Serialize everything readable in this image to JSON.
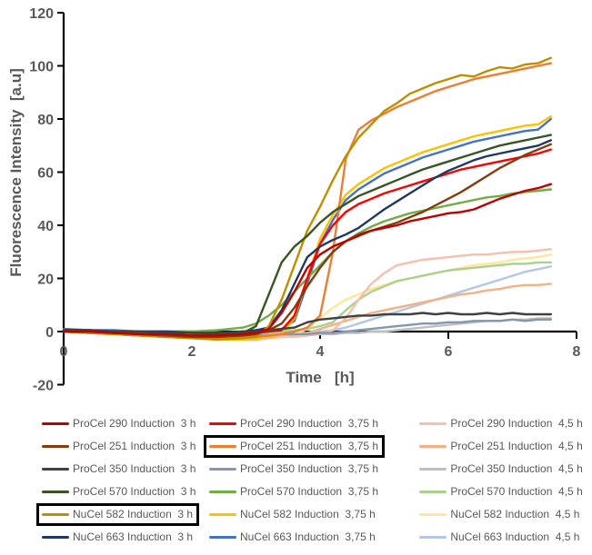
{
  "chart_data": {
    "type": "line",
    "title": "",
    "xlabel": "Time   [h]",
    "ylabel": "Fluorescence Intensity  [a.u]",
    "xlim": [
      0,
      8
    ],
    "ylim": [
      -20,
      120
    ],
    "x_ticks": [
      0,
      2,
      4,
      6,
      8
    ],
    "y_ticks": [
      120,
      100,
      80,
      60,
      40,
      20,
      0,
      -20
    ],
    "grid": false,
    "legend": {
      "position": "bottom",
      "columns": 3,
      "highlighted_entries": [
        "NuCel 582 Induction  3 h",
        "ProCel 251 Induction  3,75 h"
      ]
    },
    "axis_color": "#000000",
    "text_color": "#595959",
    "x": [
      0,
      0.4,
      0.8,
      1.2,
      1.6,
      2,
      2.4,
      2.8,
      3,
      3.2,
      3.4,
      3.6,
      3.8,
      4,
      4.2,
      4.4,
      4.6,
      4.8,
      5,
      5.2,
      5.4,
      5.6,
      5.8,
      6,
      6.2,
      6.4,
      6.6,
      6.8,
      7,
      7.2,
      7.4,
      7.6
    ],
    "series": [
      {
        "name": "ProCel 290 Induction  3 h",
        "color": "#C00000",
        "highlighted": false,
        "values": [
          0,
          0,
          -0.5,
          -1,
          -1,
          -1.5,
          -1.5,
          -1,
          -0.5,
          1,
          7,
          15,
          24,
          29,
          32,
          34,
          36,
          38,
          39,
          40,
          41.5,
          42.5,
          43.5,
          44.5,
          45,
          46,
          48,
          50,
          51.5,
          53,
          54,
          55.5
        ]
      },
      {
        "name": "ProCel 251 Induction  3 h",
        "color": "#843C0C",
        "highlighted": false,
        "values": [
          0,
          0,
          -0.5,
          -1,
          -1.5,
          -2,
          -2,
          -1.5,
          -1,
          0.5,
          3,
          9,
          17,
          24,
          30,
          34,
          36.5,
          38,
          39.5,
          41,
          43,
          45,
          47.5,
          50,
          52.5,
          55.5,
          58.5,
          61.5,
          64,
          66.5,
          68.5,
          70.5
        ]
      },
      {
        "name": "ProCel 350 Induction  3 h",
        "color": "#404040",
        "highlighted": false,
        "values": [
          0.5,
          0.5,
          0,
          0,
          -0.5,
          -0.5,
          -0.5,
          0,
          0,
          0.5,
          1,
          1.5,
          3.5,
          4.5,
          5,
          5.5,
          6,
          6,
          6.5,
          6.5,
          6.5,
          7,
          6.5,
          7,
          6.5,
          6.5,
          7,
          6.5,
          7,
          6.5,
          6.5,
          6.5
        ]
      },
      {
        "name": "ProCel 570 Induction  3 h",
        "color": "#375623",
        "highlighted": false,
        "values": [
          0,
          0,
          -0.5,
          -1,
          -1,
          -1.5,
          -1,
          -0.5,
          2,
          14,
          26,
          32,
          36,
          41,
          45,
          48,
          51,
          53,
          55,
          57,
          59,
          61,
          62.5,
          64,
          65.5,
          67,
          68.5,
          70,
          71,
          72,
          73,
          74
        ]
      },
      {
        "name": "NuCel 582 Induction  3 h",
        "color": "#BF8F00",
        "highlighted": true,
        "values": [
          0,
          -0.5,
          -1,
          -1.5,
          -2,
          -2.5,
          -3,
          -2.5,
          -2,
          2,
          12,
          25,
          38,
          47,
          57,
          66,
          73,
          78,
          83,
          86,
          89.5,
          91.5,
          93.5,
          95,
          96.5,
          96,
          98,
          99.5,
          99,
          100.5,
          101,
          103
        ]
      },
      {
        "name": "NuCel 663 Induction  3 h",
        "color": "#203864",
        "highlighted": false,
        "values": [
          0.5,
          0.5,
          0,
          0,
          0,
          -0.5,
          -0.5,
          0,
          0.5,
          1.5,
          8,
          18,
          28,
          32,
          34.5,
          36.5,
          39,
          42.5,
          46,
          49,
          52,
          55,
          58,
          60.5,
          62.5,
          64.5,
          66,
          67,
          68,
          69,
          70,
          72
        ]
      },
      {
        "name": "ProCel 290 Induction  3,75 h",
        "color": "#FF0000",
        "highlighted": false,
        "values": [
          0,
          0,
          -0.5,
          -1,
          -1,
          -1.5,
          -1.5,
          -1,
          -0.5,
          0,
          0.5,
          6,
          20,
          33,
          40,
          45,
          48,
          50,
          52,
          53.5,
          55,
          56.5,
          58,
          59.5,
          61,
          62,
          63,
          64,
          65,
          66,
          67,
          68.5
        ]
      },
      {
        "name": "ProCel 251 Induction  3,75 h",
        "color": "#ED7D31",
        "highlighted": true,
        "values": [
          0,
          -0.5,
          -1,
          -1.5,
          -2,
          -2.5,
          -2.5,
          -2,
          -2,
          -1.5,
          -1,
          0,
          1.5,
          6,
          30,
          65,
          76,
          79.5,
          82,
          84.5,
          86.5,
          88.5,
          90.5,
          92,
          93.5,
          95,
          96,
          97,
          98,
          99,
          100,
          101
        ]
      },
      {
        "name": "ProCel 350 Induction  3,75 h",
        "color": "#8497B0",
        "highlighted": false,
        "values": [
          0,
          0,
          -0.5,
          -1,
          -1,
          -1.5,
          -1.5,
          -1.5,
          -1.5,
          -1.5,
          -1,
          -1,
          -1,
          -0.5,
          -0.5,
          0,
          0.5,
          1,
          1.5,
          2,
          2.5,
          3,
          3,
          3.5,
          3.5,
          4,
          4,
          4,
          4.5,
          4,
          4.5,
          4.5
        ]
      },
      {
        "name": "ProCel 570 Induction  3,75 h",
        "color": "#70AD47",
        "highlighted": false,
        "values": [
          0,
          0,
          -0.5,
          -0.5,
          0,
          0,
          0.5,
          1.5,
          3,
          6,
          10,
          15,
          20,
          25,
          30,
          34,
          37,
          39.5,
          41.5,
          43,
          44.5,
          45.5,
          46.5,
          47.5,
          48.5,
          49.5,
          50.5,
          51,
          52,
          52.5,
          53,
          53.5
        ]
      },
      {
        "name": "NuCel 582 Induction  3,75 h",
        "color": "#FFC000",
        "highlighted": false,
        "values": [
          0,
          -0.5,
          -1,
          -1.5,
          -2,
          -2.5,
          -3,
          -3,
          -2.5,
          -2,
          -1,
          5,
          20,
          35,
          44,
          51.5,
          55.5,
          58.5,
          61.5,
          63.5,
          65.5,
          67.5,
          69,
          70.5,
          72,
          73.5,
          74.5,
          75.5,
          76.5,
          77.5,
          78,
          81
        ]
      },
      {
        "name": "NuCel 663 Induction  3,75 h",
        "color": "#4472C4",
        "highlighted": false,
        "values": [
          1,
          0.5,
          0.5,
          0,
          0,
          0,
          -0.5,
          -0.5,
          -0.5,
          0,
          1,
          4,
          18,
          33,
          42,
          49.5,
          53.5,
          56.5,
          59.5,
          61.5,
          63.5,
          65.5,
          67,
          68.5,
          70,
          71.5,
          72.5,
          73.5,
          74.5,
          75.5,
          76,
          80
        ]
      },
      {
        "name": "ProCel 290 Induction  4,5 h",
        "color": "#F7BFAC",
        "highlighted": false,
        "values": [
          0,
          -0.5,
          -1,
          -1.5,
          -2,
          -2.5,
          -2.5,
          -2.5,
          -2.5,
          -2.5,
          -2,
          -2,
          -1.5,
          -1,
          0.5,
          5,
          12,
          18,
          22,
          25,
          26,
          27,
          27.5,
          28,
          28.5,
          29,
          29,
          29.5,
          30,
          30,
          30.5,
          31
        ]
      },
      {
        "name": "ProCel 251 Induction  4,5 h",
        "color": "#F4B183",
        "highlighted": false,
        "values": [
          0,
          -0.5,
          -1,
          -1.5,
          -2,
          -2.5,
          -3,
          -3,
          -3,
          -2.5,
          -2,
          -1.5,
          -0.5,
          1,
          2.5,
          4,
          5.5,
          7,
          8,
          9,
          10,
          11,
          12,
          13,
          14,
          14.5,
          15.5,
          16,
          17,
          17.5,
          17.5,
          18
        ]
      },
      {
        "name": "ProCel 350 Induction  4,5 h",
        "color": "#BFBFBF",
        "highlighted": false,
        "values": [
          0,
          0,
          -0.5,
          -1,
          -1,
          -1.5,
          -1.5,
          -1.5,
          -1.5,
          -1.5,
          -1.5,
          -1,
          -1,
          -1,
          -1,
          -0.5,
          -0.5,
          0,
          0,
          0.5,
          1,
          1.5,
          2,
          2.5,
          3,
          3.5,
          4,
          4,
          4.5,
          4.5,
          5,
          5
        ]
      },
      {
        "name": "ProCel 570 Induction  4,5 h",
        "color": "#A9D18E",
        "highlighted": false,
        "values": [
          0,
          0,
          -0.5,
          -1,
          -1,
          -1.5,
          -1.5,
          -1,
          -1,
          -0.5,
          0,
          0.5,
          1,
          2,
          3.5,
          8,
          12,
          15,
          17,
          19,
          20,
          21,
          22,
          23,
          23.5,
          24,
          24.5,
          25,
          25.5,
          25.5,
          26,
          26
        ]
      },
      {
        "name": "NuCel 582 Induction  4,5 h",
        "color": "#FFE699",
        "highlighted": false,
        "values": [
          0,
          -0.5,
          -1,
          -1.5,
          -2,
          -2.5,
          -3,
          -3,
          -3,
          -2.5,
          -2,
          -1,
          1,
          5,
          9,
          12,
          14,
          16,
          17.5,
          19,
          20,
          21,
          22,
          23,
          24,
          25,
          25.5,
          26,
          27,
          27.5,
          28,
          29
        ]
      },
      {
        "name": "NuCel 663 Induction  4,5 h",
        "color": "#B4C7E7",
        "highlighted": false,
        "values": [
          0.5,
          0,
          0,
          -0.5,
          -0.5,
          -1,
          -1,
          -1,
          -1,
          -1,
          -1,
          -0.5,
          -0.5,
          0,
          0.5,
          1.5,
          3,
          4.5,
          6,
          7.5,
          9,
          10.5,
          12,
          13.5,
          15,
          16.5,
          18,
          19.5,
          21,
          22.5,
          23.5,
          24.5
        ]
      }
    ]
  }
}
